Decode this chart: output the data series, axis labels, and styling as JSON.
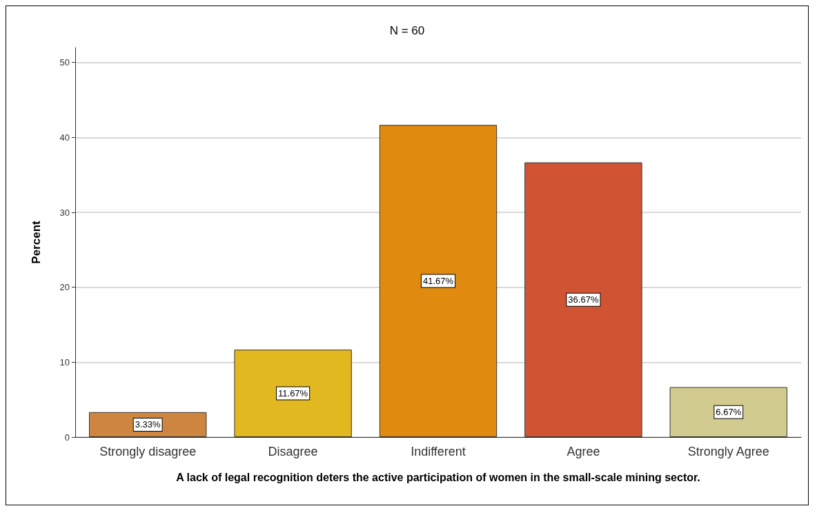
{
  "chart_data": {
    "type": "bar",
    "title": "N = 60",
    "xlabel": "A lack of legal recognition deters the active participation of women in the small-scale mining sector.",
    "ylabel": "Percent",
    "categories": [
      "Strongly disagree",
      "Disagree",
      "Indifferent",
      "Agree",
      "Strongly Agree"
    ],
    "values": [
      3.33,
      11.67,
      41.67,
      36.67,
      6.67
    ],
    "colors": [
      "#cd853f",
      "#e1b820",
      "#e08a10",
      "#d05433",
      "#d2cb8f"
    ],
    "value_labels": [
      "3.33%",
      "11.67%",
      "41.67%",
      "36.67%",
      "6.67%"
    ],
    "ylim": [
      0,
      52
    ],
    "yticks": [
      0,
      10,
      20,
      30,
      40,
      50
    ],
    "grid": "y"
  }
}
